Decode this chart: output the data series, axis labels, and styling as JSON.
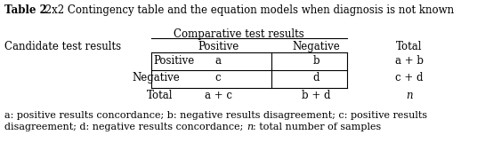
{
  "title_bold": "Table 2",
  "title_normal": " 2x2 Contingency table and the equation models when diagnosis is not known",
  "comparative_header": "Comparative test results",
  "col_headers": [
    "Positive",
    "Negative",
    "Total"
  ],
  "row_label_0": "Candidate test results",
  "row_label_1": "Positive",
  "row_label_2": "Negative",
  "row_label_3": "Total",
  "cells": [
    [
      "a",
      "b",
      "a + b"
    ],
    [
      "c",
      "d",
      "c + d"
    ],
    [
      "a + c",
      "b + d",
      "n"
    ]
  ],
  "footnote_line1": "a: positive results concordance; b: negative results disagreement; c: positive results",
  "footnote_line2_pre": "disagreement; d: negative results concordance; ",
  "footnote_italic": "n",
  "footnote_line2_post": ": total number of samples",
  "bg_color": "#ffffff",
  "text_color": "#000000",
  "font_size": 8.5
}
